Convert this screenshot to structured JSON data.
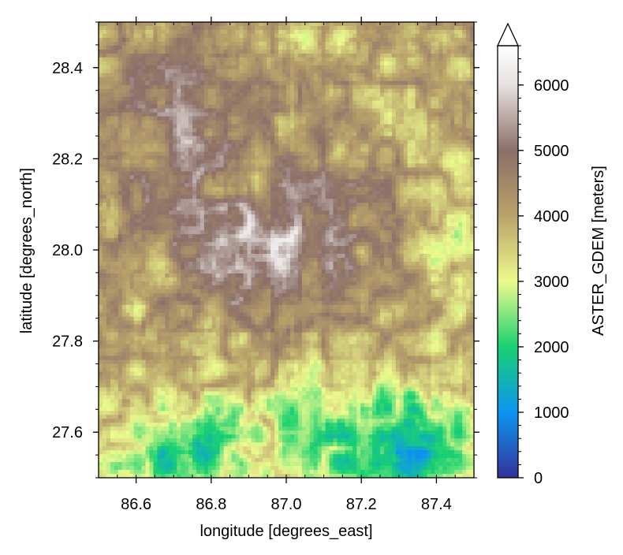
{
  "chart_data": {
    "type": "heatmap",
    "xlabel": "longitude [degrees_east]",
    "ylabel": "latitude [degrees_north]",
    "xlim": [
      86.5,
      87.5
    ],
    "ylim": [
      27.5,
      28.5
    ],
    "x_ticks": [
      86.6,
      86.8,
      87.0,
      87.2,
      87.4
    ],
    "x_tick_labels": [
      "86.6",
      "86.8",
      "87.0",
      "87.2",
      "87.4"
    ],
    "y_ticks": [
      27.6,
      27.8,
      28.0,
      28.2,
      28.4
    ],
    "y_tick_labels": [
      "27.6",
      "27.8",
      "28.0",
      "28.2",
      "28.4"
    ],
    "colorbar": {
      "label": "ASTER_GDEM [meters]",
      "vmin": 0,
      "vmax": 6600,
      "ticks": [
        0,
        1000,
        2000,
        3000,
        4000,
        5000,
        6000
      ],
      "tick_labels": [
        "0",
        "1000",
        "2000",
        "3000",
        "4000",
        "5000",
        "6000"
      ],
      "extend": "max",
      "colormap": "terrain",
      "color_stops": [
        {
          "value": 0,
          "color": "#333399"
        },
        {
          "value": 1000,
          "color": "#0d95f1"
        },
        {
          "value": 2000,
          "color": "#19d071"
        },
        {
          "value": 3000,
          "color": "#ecfa8e"
        },
        {
          "value": 4000,
          "color": "#b9a26a"
        },
        {
          "value": 5000,
          "color": "#8c6f68"
        },
        {
          "value": 6000,
          "color": "#e6e1e0"
        },
        {
          "value": 6600,
          "color": "#ffffff"
        }
      ]
    },
    "terrain_summary": {
      "lowest_elevation_region": "southeast river valleys near 87.1-87.4 E, 27.5-27.7 N",
      "highest_elevation_region": "central massif near 86.7-87.1 E, 27.9-28.1 N"
    }
  }
}
